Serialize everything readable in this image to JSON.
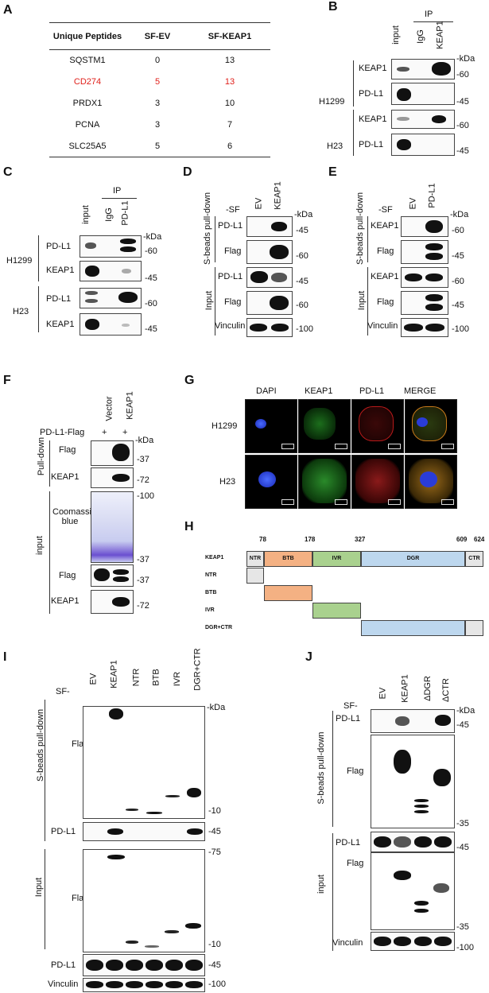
{
  "panels": {
    "A": "A",
    "B": "B",
    "C": "C",
    "D": "D",
    "E": "E",
    "F": "F",
    "G": "G",
    "H": "H",
    "I": "I",
    "J": "J"
  },
  "units": {
    "kda": "-kDa"
  },
  "panelA": {
    "headers": [
      "Unique Peptides",
      "SF-EV",
      "SF-KEAP1"
    ],
    "rows": [
      {
        "name": "SQSTM1",
        "ev": "0",
        "keap1": "13"
      },
      {
        "name": "CD274",
        "ev": "5",
        "keap1": "13",
        "highlight": "#e0201b"
      },
      {
        "name": "PRDX1",
        "ev": "3",
        "keap1": "10"
      },
      {
        "name": "PCNA",
        "ev": "3",
        "keap1": "7"
      },
      {
        "name": "SLC25A5",
        "ev": "5",
        "keap1": "6"
      }
    ]
  },
  "panelB": {
    "ip": "IP",
    "lanes": [
      "input",
      "IgG",
      "KEAP1"
    ],
    "cells": [
      "H1299",
      "H23"
    ],
    "blots": [
      "KEAP1",
      "PD-L1",
      "KEAP1",
      "PD-L1"
    ],
    "mw": [
      "-60",
      "-45",
      "-60",
      "-45"
    ]
  },
  "panelC": {
    "ip": "IP",
    "lanes": [
      "input",
      "IgG",
      "PD-L1"
    ],
    "cells": [
      "H1299",
      "H23"
    ],
    "blots": [
      "PD-L1",
      "KEAP1",
      "PD-L1",
      "KEAP1"
    ],
    "mw": [
      "-60",
      "-45",
      "-60",
      "-45"
    ]
  },
  "panelD": {
    "sf": "-SF",
    "lanes": [
      "EV",
      "KEAP1"
    ],
    "groups": [
      "S-beads pull-down",
      "Input"
    ],
    "blots": [
      "PD-L1",
      "Flag",
      "PD-L1",
      "Flag",
      "Vinculin"
    ],
    "mw": [
      "-45",
      "-60",
      "-45",
      "-60",
      "-100"
    ]
  },
  "panelE": {
    "sf": "-SF",
    "lanes": [
      "EV",
      "PD-L1"
    ],
    "groups": [
      "S-beads pull-down",
      "Input"
    ],
    "blots": [
      "KEAP1",
      "Flag",
      "KEAP1",
      "Flag",
      "Vinculin"
    ],
    "mw": [
      "-60",
      "-45",
      "-60",
      "-45",
      "-100"
    ]
  },
  "panelF": {
    "rowlabel": "PD-L1-Flag",
    "lanes": [
      "Vector",
      "KEAP1"
    ],
    "plus": [
      "+",
      "+"
    ],
    "groups": [
      "Pull-down",
      "input"
    ],
    "blots": [
      "Flag",
      "KEAP1",
      "Coomassie blue",
      "Flag",
      "KEAP1"
    ],
    "mw": [
      "-37",
      "-72",
      "-100",
      "-37",
      "-37",
      "-72"
    ]
  },
  "panelG": {
    "cols": [
      "DAPI",
      "KEAP1",
      "PD-L1",
      "MERGE"
    ],
    "rows": [
      "H1299",
      "H23"
    ]
  },
  "panelH": {
    "positions": [
      "78",
      "178",
      "327",
      "609",
      "624"
    ],
    "protein": "KEAP1",
    "domains": [
      "NTR",
      "BTB",
      "IVR",
      "DGR",
      "CTR"
    ],
    "constructs": [
      "NTR",
      "BTB",
      "IVR",
      "DGR+CTR"
    ],
    "colors": {
      "NTR": "#e6e6e6",
      "BTB": "#f4b183",
      "IVR": "#a9d18e",
      "DGR": "#bdd7ee",
      "CTR": "#e6e6e6"
    }
  },
  "panelI": {
    "sf": "SF-",
    "lanes": [
      "EV",
      "KEAP1",
      "NTR",
      "BTB",
      "IVR",
      "DGR+CTR"
    ],
    "groups": [
      "S-beads pull-down",
      "Input"
    ],
    "blots": [
      "Flag",
      "PD-L1",
      "Flag",
      "PD-L1",
      "Vinculin"
    ],
    "mw": [
      "-10",
      "-45",
      "-75",
      "-10",
      "-45",
      "-100"
    ]
  },
  "panelJ": {
    "sf": "SF-",
    "lanes": [
      "EV",
      "KEAP1",
      "ΔDGR",
      "ΔCTR"
    ],
    "groups": [
      "S-beads pull-down",
      "input"
    ],
    "blots": [
      "PD-L1",
      "Flag",
      "PD-L1",
      "Flag",
      "Vinculin"
    ],
    "mw": [
      "-45",
      "-35",
      "-45",
      "-35",
      "-100"
    ]
  }
}
